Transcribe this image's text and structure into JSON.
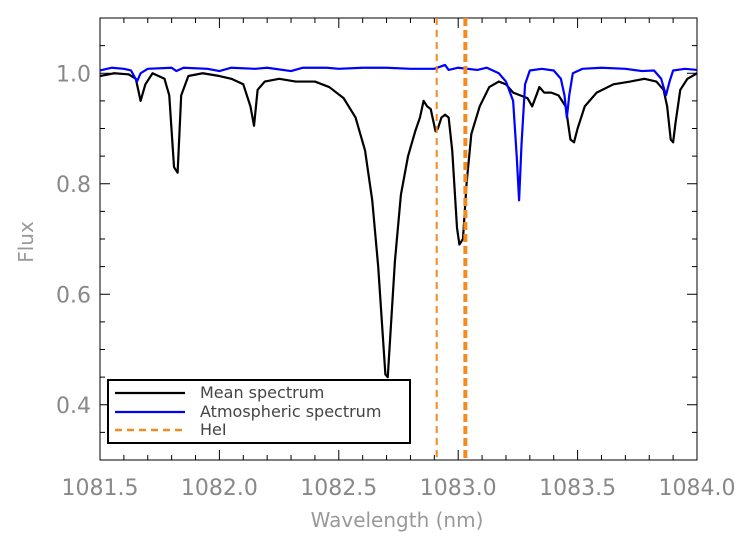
{
  "chart_data": {
    "type": "line",
    "xlabel": "Wavelength (nm)",
    "ylabel": "Flux",
    "xlim": [
      1081.5,
      1084.0
    ],
    "ylim": [
      0.3,
      1.1
    ],
    "x_ticks": [
      1081.5,
      1082.0,
      1082.5,
      1083.0,
      1083.5,
      1084.0
    ],
    "x_tick_labels": [
      "1081.5",
      "1082.0",
      "1082.5",
      "1083.0",
      "1083.5",
      "1084.0"
    ],
    "y_ticks": [
      0.4,
      0.6,
      0.8,
      1.0
    ],
    "y_tick_labels": [
      "0.4",
      "0.6",
      "0.8",
      "1.0"
    ],
    "grid": false,
    "legend_position": "bottom-left",
    "series": [
      {
        "name": "Mean spectrum",
        "color": "#000000",
        "style": "solid",
        "points": [
          [
            1081.5,
            0.995
          ],
          [
            1081.56,
            1.0
          ],
          [
            1081.62,
            0.998
          ],
          [
            1081.65,
            0.99
          ],
          [
            1081.67,
            0.95
          ],
          [
            1081.69,
            0.98
          ],
          [
            1081.72,
            1.0
          ],
          [
            1081.77,
            0.99
          ],
          [
            1081.79,
            0.96
          ],
          [
            1081.81,
            0.83
          ],
          [
            1081.825,
            0.82
          ],
          [
            1081.84,
            0.96
          ],
          [
            1081.87,
            0.995
          ],
          [
            1081.93,
            1.0
          ],
          [
            1082.0,
            0.995
          ],
          [
            1082.05,
            0.99
          ],
          [
            1082.1,
            0.98
          ],
          [
            1082.13,
            0.94
          ],
          [
            1082.145,
            0.905
          ],
          [
            1082.16,
            0.97
          ],
          [
            1082.19,
            0.985
          ],
          [
            1082.25,
            0.99
          ],
          [
            1082.32,
            0.985
          ],
          [
            1082.4,
            0.985
          ],
          [
            1082.46,
            0.975
          ],
          [
            1082.52,
            0.955
          ],
          [
            1082.57,
            0.92
          ],
          [
            1082.61,
            0.86
          ],
          [
            1082.64,
            0.77
          ],
          [
            1082.665,
            0.65
          ],
          [
            1082.685,
            0.52
          ],
          [
            1082.695,
            0.455
          ],
          [
            1082.705,
            0.45
          ],
          [
            1082.715,
            0.52
          ],
          [
            1082.735,
            0.66
          ],
          [
            1082.76,
            0.78
          ],
          [
            1082.79,
            0.85
          ],
          [
            1082.82,
            0.895
          ],
          [
            1082.84,
            0.92
          ],
          [
            1082.855,
            0.95
          ],
          [
            1082.87,
            0.94
          ],
          [
            1082.885,
            0.935
          ],
          [
            1082.905,
            0.895
          ],
          [
            1082.915,
            0.9
          ],
          [
            1082.93,
            0.92
          ],
          [
            1082.945,
            0.925
          ],
          [
            1082.96,
            0.92
          ],
          [
            1082.975,
            0.86
          ],
          [
            1082.995,
            0.72
          ],
          [
            1083.005,
            0.69
          ],
          [
            1083.02,
            0.7
          ],
          [
            1083.035,
            0.8
          ],
          [
            1083.055,
            0.89
          ],
          [
            1083.09,
            0.94
          ],
          [
            1083.13,
            0.975
          ],
          [
            1083.17,
            0.985
          ],
          [
            1083.2,
            0.98
          ],
          [
            1083.23,
            0.965
          ],
          [
            1083.26,
            0.96
          ],
          [
            1083.29,
            0.955
          ],
          [
            1083.31,
            0.94
          ],
          [
            1083.34,
            0.975
          ],
          [
            1083.36,
            0.965
          ],
          [
            1083.39,
            0.965
          ],
          [
            1083.42,
            0.96
          ],
          [
            1083.45,
            0.94
          ],
          [
            1083.47,
            0.88
          ],
          [
            1083.485,
            0.875
          ],
          [
            1083.5,
            0.9
          ],
          [
            1083.53,
            0.94
          ],
          [
            1083.58,
            0.965
          ],
          [
            1083.65,
            0.98
          ],
          [
            1083.72,
            0.985
          ],
          [
            1083.78,
            0.99
          ],
          [
            1083.83,
            0.985
          ],
          [
            1083.86,
            0.97
          ],
          [
            1083.875,
            0.94
          ],
          [
            1083.89,
            0.88
          ],
          [
            1083.9,
            0.875
          ],
          [
            1083.91,
            0.91
          ],
          [
            1083.93,
            0.97
          ],
          [
            1083.96,
            0.99
          ],
          [
            1084.0,
            1.0
          ]
        ]
      },
      {
        "name": "Atmospheric spectrum",
        "color": "#0000ff",
        "style": "solid",
        "points": [
          [
            1081.5,
            1.005
          ],
          [
            1081.55,
            1.01
          ],
          [
            1081.6,
            1.008
          ],
          [
            1081.63,
            1.005
          ],
          [
            1081.655,
            0.985
          ],
          [
            1081.67,
            1.0
          ],
          [
            1081.7,
            1.008
          ],
          [
            1081.8,
            1.01
          ],
          [
            1081.82,
            1.004
          ],
          [
            1081.85,
            1.01
          ],
          [
            1081.95,
            1.008
          ],
          [
            1082.0,
            1.004
          ],
          [
            1082.05,
            1.01
          ],
          [
            1082.15,
            1.008
          ],
          [
            1082.2,
            1.01
          ],
          [
            1082.3,
            1.004
          ],
          [
            1082.35,
            1.01
          ],
          [
            1082.45,
            1.01
          ],
          [
            1082.5,
            1.008
          ],
          [
            1082.6,
            1.01
          ],
          [
            1082.7,
            1.01
          ],
          [
            1082.8,
            1.008
          ],
          [
            1082.9,
            1.008
          ],
          [
            1082.945,
            1.015
          ],
          [
            1082.96,
            1.006
          ],
          [
            1083.0,
            1.01
          ],
          [
            1083.08,
            1.006
          ],
          [
            1083.12,
            1.01
          ],
          [
            1083.17,
            1.0
          ],
          [
            1083.2,
            0.985
          ],
          [
            1083.23,
            0.95
          ],
          [
            1083.245,
            0.85
          ],
          [
            1083.255,
            0.77
          ],
          [
            1083.265,
            0.87
          ],
          [
            1083.28,
            0.98
          ],
          [
            1083.3,
            1.005
          ],
          [
            1083.35,
            1.008
          ],
          [
            1083.4,
            1.005
          ],
          [
            1083.43,
            0.99
          ],
          [
            1083.445,
            0.96
          ],
          [
            1083.455,
            0.92
          ],
          [
            1083.465,
            0.96
          ],
          [
            1083.48,
            1.0
          ],
          [
            1083.52,
            1.008
          ],
          [
            1083.6,
            1.01
          ],
          [
            1083.7,
            1.008
          ],
          [
            1083.77,
            1.004
          ],
          [
            1083.82,
            1.005
          ],
          [
            1083.85,
            0.99
          ],
          [
            1083.87,
            0.96
          ],
          [
            1083.885,
            0.985
          ],
          [
            1083.9,
            1.005
          ],
          [
            1083.95,
            1.008
          ],
          [
            1084.0,
            1.006
          ]
        ]
      },
      {
        "name": "HeI",
        "color": "#f28a1e",
        "style": "dashed",
        "vlines": [
          1082.91,
          1083.03
        ]
      }
    ]
  },
  "legend": {
    "items": [
      {
        "label": "Mean spectrum",
        "color": "#000000",
        "style": "solid"
      },
      {
        "label": "Atmospheric spectrum",
        "color": "#0000ff",
        "style": "solid"
      },
      {
        "label": "HeI",
        "color": "#f28a1e",
        "style": "dashed"
      }
    ]
  }
}
